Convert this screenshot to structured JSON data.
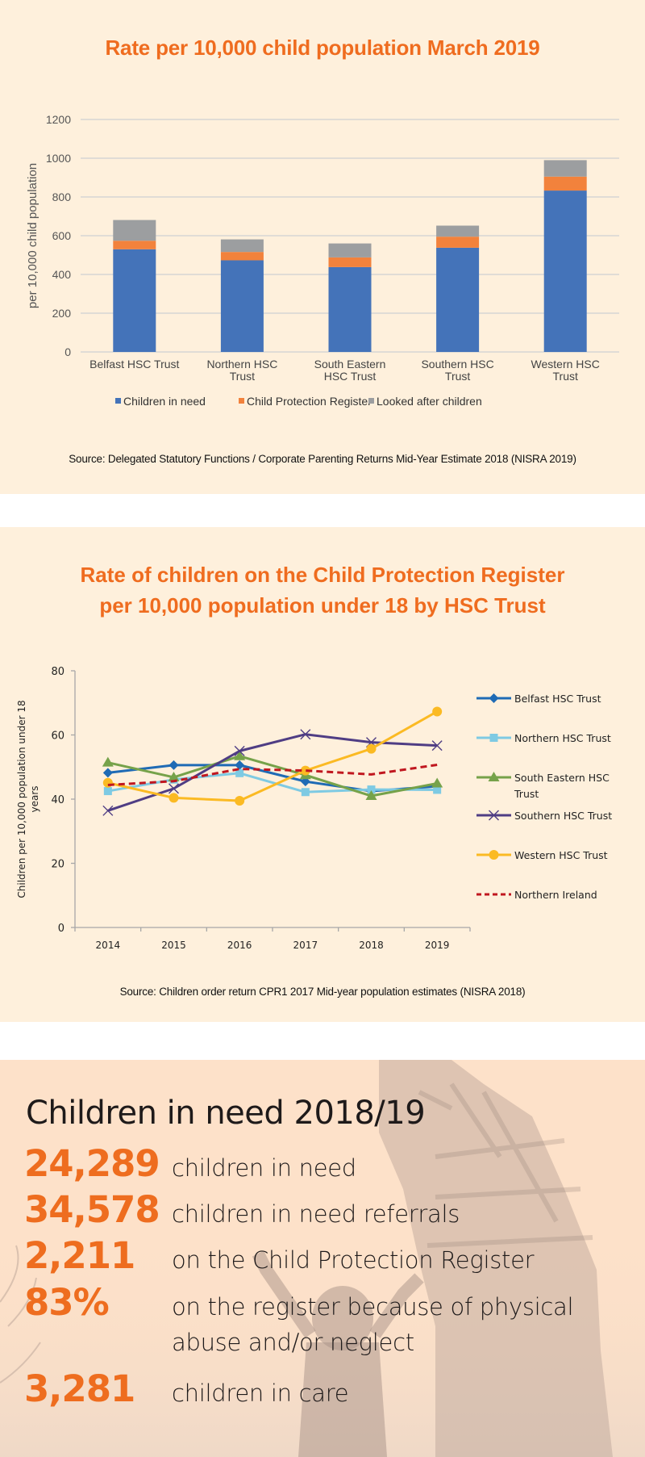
{
  "chart_data": [
    {
      "type": "bar",
      "stacked": true,
      "title": "Rate per 10,000 child population March 2019",
      "xlabel": "",
      "ylabel": "per 10,000 child population",
      "ylim": [
        0,
        1200
      ],
      "yticks": [
        0,
        200,
        400,
        600,
        800,
        1000,
        1200
      ],
      "grid": true,
      "legend_position": "bottom",
      "categories": [
        "Belfast HSC Trust",
        "Northern HSC Trust",
        "South Eastern HSC Trust",
        "Southern HSC Trust",
        "Western HSC Trust"
      ],
      "category_lines": [
        [
          "Belfast HSC Trust"
        ],
        [
          "Northern HSC",
          "Trust"
        ],
        [
          "South Eastern",
          "HSC Trust"
        ],
        [
          "Southern HSC",
          "Trust"
        ],
        [
          "Western HSC",
          "Trust"
        ]
      ],
      "series": [
        {
          "name": "Children in need",
          "color": "#4473b9",
          "values": [
            530,
            473,
            438,
            538,
            833
          ]
        },
        {
          "name": "Child Protection Register",
          "color": "#f2823c",
          "values": [
            44,
            43,
            50,
            57,
            72
          ]
        },
        {
          "name": "Looked after children",
          "color": "#9c9ea0",
          "values": [
            107,
            65,
            72,
            57,
            85
          ]
        }
      ],
      "source": "Source: Delegated Statutory Functions / Corporate Parenting Returns Mid-Year Estimate 2018 (NISRA 2019)"
    },
    {
      "type": "line",
      "title": "Rate of children on the Child Protection Register per 10,000 population under 18 by HSC Trust",
      "title_lines": [
        "Rate of children on the Child Protection Register",
        "per 10,000 population under 18 by HSC Trust"
      ],
      "xlabel": "",
      "ylabel": "Children per 10,000 population under 18 years",
      "ylabel_lines": [
        "Children per 10,000 population under 18",
        "years"
      ],
      "ylim": [
        0,
        80
      ],
      "yticks": [
        0,
        20,
        40,
        60,
        80
      ],
      "grid": false,
      "legend_position": "right",
      "x": [
        "2014",
        "2015",
        "2016",
        "2017",
        "2018",
        "2019"
      ],
      "series": [
        {
          "name": "Belfast HSC Trust",
          "label_lines": [
            "Belfast HSC Trust"
          ],
          "color": "#1f6bb5",
          "marker": "diamond",
          "dashed": false,
          "values": [
            48.2,
            50.6,
            50.6,
            45.5,
            42.5,
            44.0
          ]
        },
        {
          "name": "Northern HSC Trust",
          "label_lines": [
            "Northern HSC Trust"
          ],
          "color": "#7ecae3",
          "marker": "square",
          "dashed": false,
          "values": [
            42.5,
            46.1,
            48.1,
            42.2,
            43.0,
            42.9
          ]
        },
        {
          "name": "South Eastern HSC Trust",
          "label_lines": [
            "South Eastern HSC",
            "Trust"
          ],
          "color": "#76a24a",
          "marker": "triangle",
          "dashed": false,
          "values": [
            51.4,
            46.8,
            53.4,
            47.5,
            41.0,
            44.9
          ]
        },
        {
          "name": "Southern HSC Trust",
          "label_lines": [
            "Southern HSC Trust"
          ],
          "color": "#4f3d84",
          "marker": "x",
          "dashed": false,
          "values": [
            36.4,
            43.3,
            55.0,
            60.2,
            57.7,
            56.7
          ]
        },
        {
          "name": "Western HSC Trust",
          "label_lines": [
            "Western HSC Trust"
          ],
          "color": "#fbba23",
          "marker": "circle",
          "dashed": false,
          "values": [
            45.1,
            40.4,
            39.5,
            48.9,
            55.7,
            67.3
          ]
        },
        {
          "name": "Northern Ireland",
          "label_lines": [
            "Northern Ireland"
          ],
          "color": "#c0171f",
          "marker": "none",
          "dashed": true,
          "values": [
            44.4,
            45.6,
            49.4,
            48.9,
            47.7,
            50.7
          ]
        }
      ],
      "source": "Source: Children order return CPR1 2017 Mid-year population estimates (NISRA 2018)"
    }
  ],
  "panel3": {
    "title": "Children in need 2018/19",
    "stats": [
      {
        "value": "24,289",
        "label": "children in need"
      },
      {
        "value": "34,578",
        "label": "children in need referrals"
      },
      {
        "value": "2,211",
        "label": "on the Child Protection Register"
      },
      {
        "value": "83%",
        "label": "on the register because of physical",
        "label2": "abuse and/or neglect"
      },
      {
        "value": "3,281",
        "label": "children in care"
      }
    ]
  },
  "colors": {
    "accent": "#ef6c1f",
    "panel_bg": "#fef0dc",
    "stat_panel_bg": "#fde1c9"
  }
}
